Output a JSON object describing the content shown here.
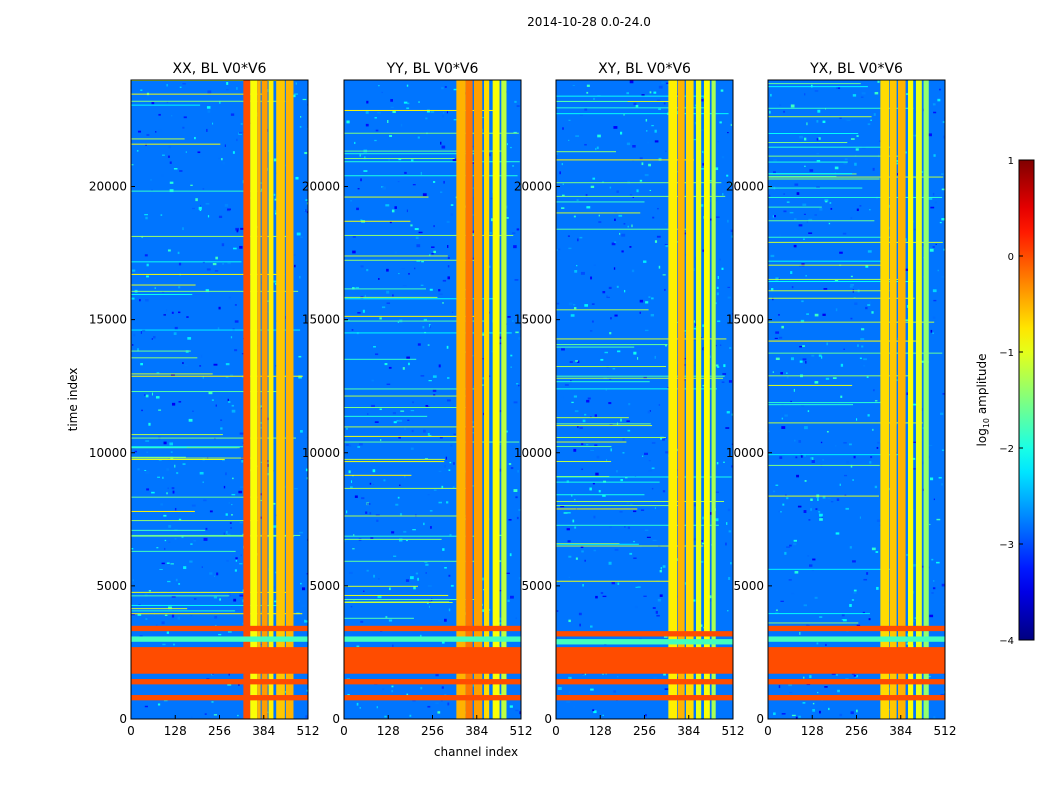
{
  "figure": {
    "suptitle": "2014-10-28 0.0-24.0"
  },
  "chart_data": [
    {
      "type": "heatmap",
      "title": "XX, BL V0*V6",
      "xlabel": "",
      "ylabel": "time index",
      "xlim": [
        0,
        512
      ],
      "ylim": [
        0,
        24000
      ],
      "xticks": [
        0,
        128,
        256,
        384,
        512
      ],
      "yticks": [
        0,
        5000,
        10000,
        15000,
        20000
      ],
      "bands": [
        {
          "x0": 325,
          "x1": 345,
          "level": 0.0
        },
        {
          "x0": 345,
          "x1": 365,
          "level": -0.9
        },
        {
          "x0": 365,
          "x1": 375,
          "level": -0.5
        },
        {
          "x0": 378,
          "x1": 395,
          "level": -0.4
        },
        {
          "x0": 398,
          "x1": 412,
          "level": -0.8
        },
        {
          "x0": 420,
          "x1": 445,
          "level": -0.6
        },
        {
          "x0": 448,
          "x1": 470,
          "level": -0.5
        }
      ],
      "rows": [
        {
          "y0": 3300,
          "y1": 3500,
          "level": 0.0
        },
        {
          "y0": 2900,
          "y1": 3100,
          "level": -1.8
        },
        {
          "y0": 1700,
          "y1": 2700,
          "level": 0.0
        },
        {
          "y0": 1300,
          "y1": 1500,
          "level": 0.0
        },
        {
          "y0": 700,
          "y1": 900,
          "level": 0.0
        }
      ]
    },
    {
      "type": "heatmap",
      "title": "YY, BL V0*V6",
      "xlabel": "",
      "ylabel": "",
      "xlim": [
        0,
        512
      ],
      "ylim": [
        0,
        24000
      ],
      "xticks": [
        0,
        128,
        256,
        384,
        512
      ],
      "yticks": [
        0,
        5000,
        10000,
        15000,
        20000
      ],
      "bands": [
        {
          "x0": 325,
          "x1": 352,
          "level": -0.5
        },
        {
          "x0": 352,
          "x1": 372,
          "level": -0.2
        },
        {
          "x0": 376,
          "x1": 400,
          "level": -0.4
        },
        {
          "x0": 405,
          "x1": 420,
          "level": -0.7
        },
        {
          "x0": 430,
          "x1": 450,
          "level": -0.9
        },
        {
          "x0": 455,
          "x1": 470,
          "level": -1.2
        }
      ],
      "rows": [
        {
          "y0": 3300,
          "y1": 3500,
          "level": 0.0
        },
        {
          "y0": 2900,
          "y1": 3100,
          "level": -1.8
        },
        {
          "y0": 1700,
          "y1": 2700,
          "level": 0.0
        },
        {
          "y0": 1300,
          "y1": 1500,
          "level": 0.0
        },
        {
          "y0": 700,
          "y1": 900,
          "level": 0.0
        }
      ]
    },
    {
      "type": "heatmap",
      "title": "XY, BL V0*V6",
      "xlabel": "channel index",
      "ylabel": "",
      "xlim": [
        0,
        512
      ],
      "ylim": [
        0,
        24000
      ],
      "xticks": [
        0,
        128,
        256,
        384,
        512
      ],
      "yticks": [
        0,
        5000,
        10000,
        15000,
        20000
      ],
      "bands": [
        {
          "x0": 325,
          "x1": 350,
          "level": -0.8
        },
        {
          "x0": 352,
          "x1": 372,
          "level": -0.5
        },
        {
          "x0": 376,
          "x1": 398,
          "level": -0.7
        },
        {
          "x0": 405,
          "x1": 420,
          "level": -1.0
        },
        {
          "x0": 428,
          "x1": 445,
          "level": -0.9
        },
        {
          "x0": 450,
          "x1": 462,
          "level": -1.3
        }
      ],
      "rows": [
        {
          "y0": 3100,
          "y1": 3300,
          "level": 0.0
        },
        {
          "y0": 2800,
          "y1": 3000,
          "level": -1.8
        },
        {
          "y0": 1700,
          "y1": 2700,
          "level": 0.0
        },
        {
          "y0": 1300,
          "y1": 1500,
          "level": 0.0
        },
        {
          "y0": 700,
          "y1": 900,
          "level": 0.0
        }
      ]
    },
    {
      "type": "heatmap",
      "title": "YX, BL V0*V6",
      "xlabel": "",
      "ylabel": "",
      "xlim": [
        0,
        512
      ],
      "ylim": [
        0,
        24000
      ],
      "xticks": [
        0,
        128,
        256,
        384,
        512
      ],
      "yticks": [
        0,
        5000,
        10000,
        15000,
        20000
      ],
      "bands": [
        {
          "x0": 325,
          "x1": 350,
          "level": -0.7
        },
        {
          "x0": 352,
          "x1": 372,
          "level": -0.6
        },
        {
          "x0": 376,
          "x1": 398,
          "level": -0.5
        },
        {
          "x0": 405,
          "x1": 420,
          "level": -0.9
        },
        {
          "x0": 428,
          "x1": 445,
          "level": -1.0
        },
        {
          "x0": 450,
          "x1": 465,
          "level": -1.4
        }
      ],
      "rows": [
        {
          "y0": 3300,
          "y1": 3500,
          "level": 0.0
        },
        {
          "y0": 2900,
          "y1": 3100,
          "level": -1.8
        },
        {
          "y0": 1700,
          "y1": 2700,
          "level": 0.0
        },
        {
          "y0": 1300,
          "y1": 1500,
          "level": 0.0
        },
        {
          "y0": 700,
          "y1": 900,
          "level": 0.0
        }
      ]
    }
  ],
  "colorbar": {
    "label": "log",
    "label_sub": "10",
    "label_rest": " amplitude",
    "ticks": [
      1,
      0,
      -1,
      -2,
      -3,
      -4
    ],
    "tick_labels": [
      "1",
      "0",
      "−1",
      "−2",
      "−3",
      "−4"
    ],
    "range": [
      -4,
      1
    ]
  }
}
